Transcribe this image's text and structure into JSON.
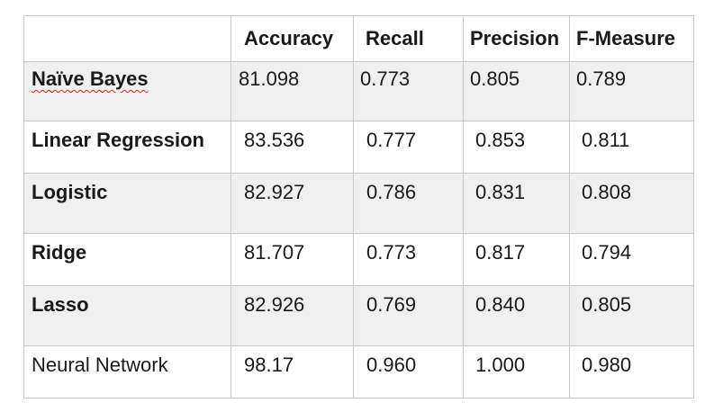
{
  "table": {
    "columns": [
      "",
      "Accuracy",
      "Recall",
      "Precision",
      "F-Measure"
    ],
    "rows": [
      {
        "model": "Naïve Bayes",
        "accuracy": "81.098",
        "recall": "0.773",
        "precision": "0.805",
        "f_measure": "0.789"
      },
      {
        "model": "Linear Regression",
        "accuracy": "83.536",
        "recall": "0.777",
        "precision": "0.853",
        "f_measure": "0.811"
      },
      {
        "model": "Logistic",
        "accuracy": "82.927",
        "recall": "0.786",
        "precision": "0.831",
        "f_measure": "0.808"
      },
      {
        "model": "Ridge",
        "accuracy": "81.707",
        "recall": "0.773",
        "precision": "0.817",
        "f_measure": "0.794"
      },
      {
        "model": "Lasso",
        "accuracy": "82.926",
        "recall": "0.769",
        "precision": "0.840",
        "f_measure": "0.805"
      },
      {
        "model": "Neural Network",
        "accuracy": "98.17",
        "recall": "0.960",
        "precision": "1.000",
        "f_measure": "0.980"
      }
    ]
  },
  "colors": {
    "shaded_row": "#f0f0f0",
    "border": "#c8c8c8",
    "spellcheck_underline": "#d22"
  }
}
